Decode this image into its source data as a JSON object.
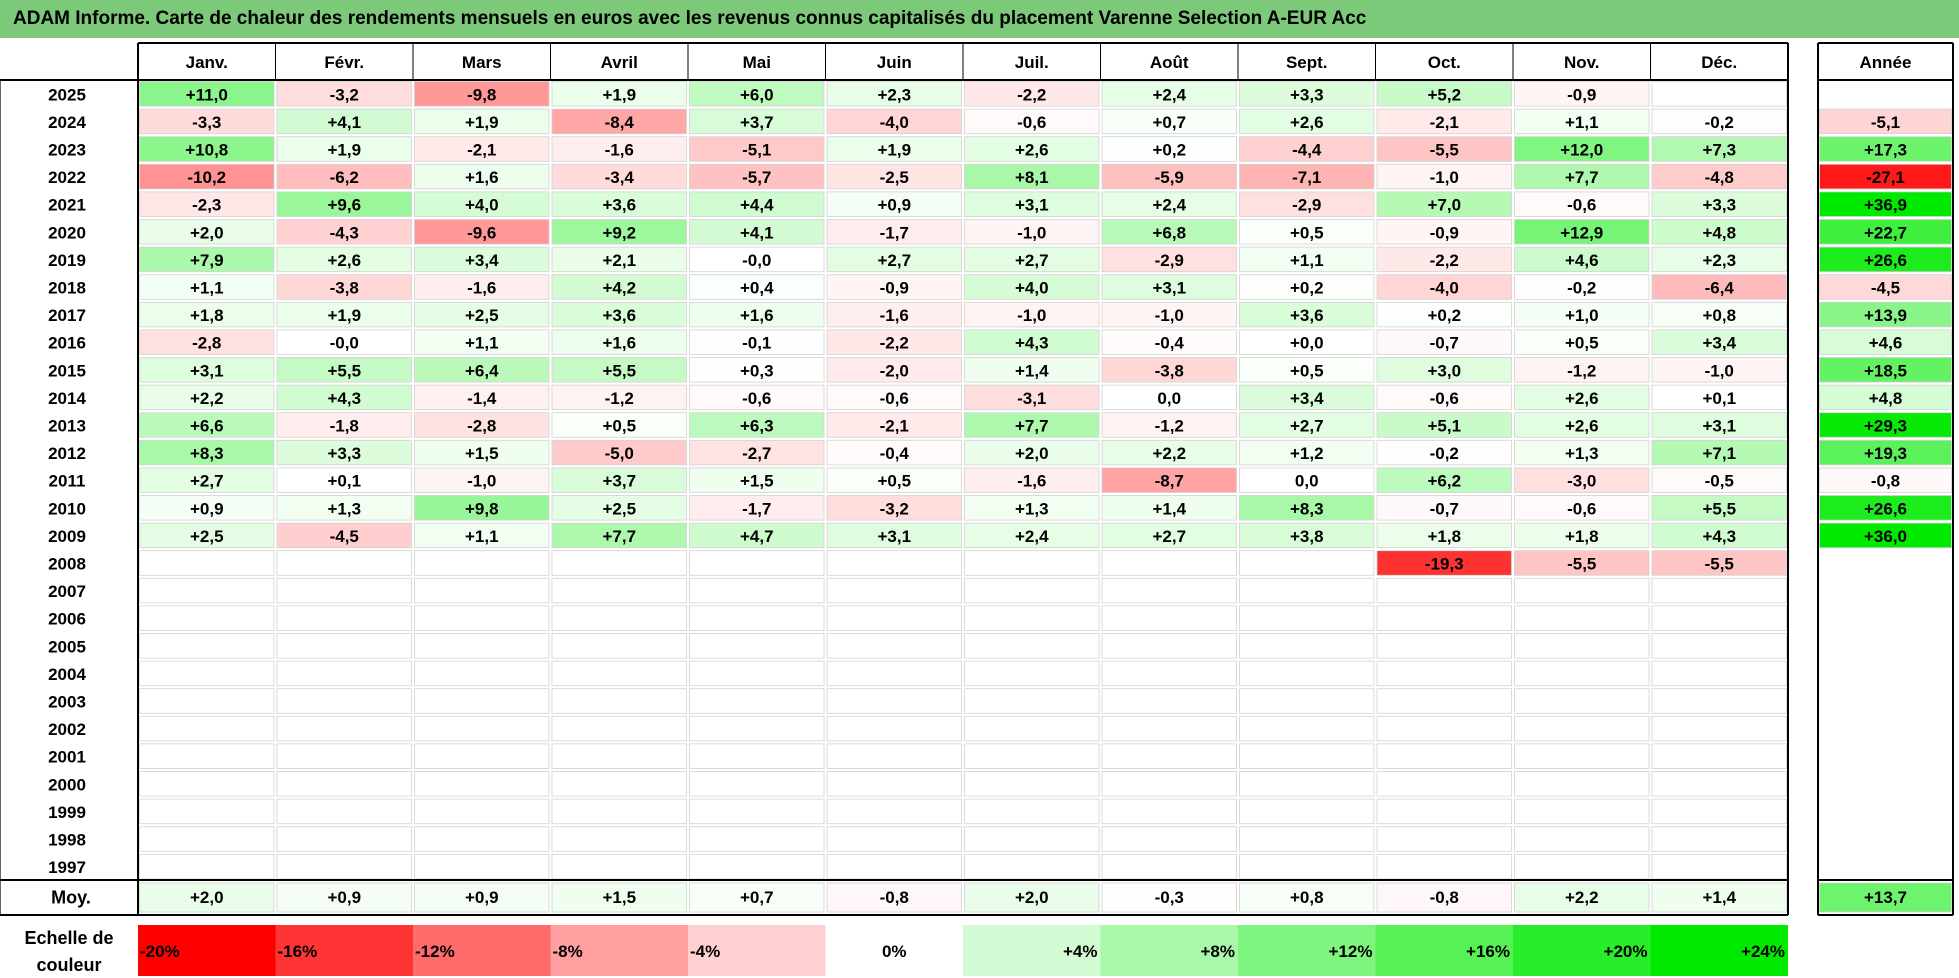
{
  "title": "ADAM Informe. Carte de chaleur des rendements mensuels en euros avec les revenus connus capitalisés du placement Varenne Selection A-EUR Acc",
  "chart_data": {
    "type": "heatmap",
    "months": [
      "Janv.",
      "Févr.",
      "Mars",
      "Avril",
      "Mai",
      "Juin",
      "Juil.",
      "Août",
      "Sept.",
      "Oct.",
      "Nov.",
      "Déc."
    ],
    "year_header": "Année",
    "rows": [
      {
        "year": "2025",
        "values": [
          "+11,0",
          "-3,2",
          "-9,8",
          "+1,9",
          "+6,0",
          "+2,3",
          "-2,2",
          "+2,4",
          "+3,3",
          "+5,2",
          "-0,9",
          ""
        ],
        "annual": ""
      },
      {
        "year": "2024",
        "values": [
          "-3,3",
          "+4,1",
          "+1,9",
          "-8,4",
          "+3,7",
          "-4,0",
          "-0,6",
          "+0,7",
          "+2,6",
          "-2,1",
          "+1,1",
          "-0,2"
        ],
        "annual": "-5,1"
      },
      {
        "year": "2023",
        "values": [
          "+10,8",
          "+1,9",
          "-2,1",
          "-1,6",
          "-5,1",
          "+1,9",
          "+2,6",
          "+0,2",
          "-4,4",
          "-5,5",
          "+12,0",
          "+7,3"
        ],
        "annual": "+17,3"
      },
      {
        "year": "2022",
        "values": [
          "-10,2",
          "-6,2",
          "+1,6",
          "-3,4",
          "-5,7",
          "-2,5",
          "+8,1",
          "-5,9",
          "-7,1",
          "-1,0",
          "+7,7",
          "-4,8"
        ],
        "annual": "-27,1"
      },
      {
        "year": "2021",
        "values": [
          "-2,3",
          "+9,6",
          "+4,0",
          "+3,6",
          "+4,4",
          "+0,9",
          "+3,1",
          "+2,4",
          "-2,9",
          "+7,0",
          "-0,6",
          "+3,3"
        ],
        "annual": "+36,9"
      },
      {
        "year": "2020",
        "values": [
          "+2,0",
          "-4,3",
          "-9,6",
          "+9,2",
          "+4,1",
          "-1,7",
          "-1,0",
          "+6,8",
          "+0,5",
          "-0,9",
          "+12,9",
          "+4,8"
        ],
        "annual": "+22,7"
      },
      {
        "year": "2019",
        "values": [
          "+7,9",
          "+2,6",
          "+3,4",
          "+2,1",
          "-0,0",
          "+2,7",
          "+2,7",
          "-2,9",
          "+1,1",
          "-2,2",
          "+4,6",
          "+2,3"
        ],
        "annual": "+26,6"
      },
      {
        "year": "2018",
        "values": [
          "+1,1",
          "-3,8",
          "-1,6",
          "+4,2",
          "+0,4",
          "-0,9",
          "+4,0",
          "+3,1",
          "+0,2",
          "-4,0",
          "-0,2",
          "-6,4"
        ],
        "annual": "-4,5"
      },
      {
        "year": "2017",
        "values": [
          "+1,8",
          "+1,9",
          "+2,5",
          "+3,6",
          "+1,6",
          "-1,6",
          "-1,0",
          "-1,0",
          "+3,6",
          "+0,2",
          "+1,0",
          "+0,8"
        ],
        "annual": "+13,9"
      },
      {
        "year": "2016",
        "values": [
          "-2,8",
          "-0,0",
          "+1,1",
          "+1,6",
          "-0,1",
          "-2,2",
          "+4,3",
          "-0,4",
          "+0,0",
          "-0,7",
          "+0,5",
          "+3,4"
        ],
        "annual": "+4,6"
      },
      {
        "year": "2015",
        "values": [
          "+3,1",
          "+5,5",
          "+6,4",
          "+5,5",
          "+0,3",
          "-2,0",
          "+1,4",
          "-3,8",
          "+0,5",
          "+3,0",
          "-1,2",
          "-1,0"
        ],
        "annual": "+18,5"
      },
      {
        "year": "2014",
        "values": [
          "+2,2",
          "+4,3",
          "-1,4",
          "-1,2",
          "-0,6",
          "-0,6",
          "-3,1",
          "0,0",
          "+3,4",
          "-0,6",
          "+2,6",
          "+0,1"
        ],
        "annual": "+4,8"
      },
      {
        "year": "2013",
        "values": [
          "+6,6",
          "-1,8",
          "-2,8",
          "+0,5",
          "+6,3",
          "-2,1",
          "+7,7",
          "-1,2",
          "+2,7",
          "+5,1",
          "+2,6",
          "+3,1"
        ],
        "annual": "+29,3"
      },
      {
        "year": "2012",
        "values": [
          "+8,3",
          "+3,3",
          "+1,5",
          "-5,0",
          "-2,7",
          "-0,4",
          "+2,0",
          "+2,2",
          "+1,2",
          "-0,2",
          "+1,3",
          "+7,1"
        ],
        "annual": "+19,3"
      },
      {
        "year": "2011",
        "values": [
          "+2,7",
          "+0,1",
          "-1,0",
          "+3,7",
          "+1,5",
          "+0,5",
          "-1,6",
          "-8,7",
          "0,0",
          "+6,2",
          "-3,0",
          "-0,5"
        ],
        "annual": "-0,8"
      },
      {
        "year": "2010",
        "values": [
          "+0,9",
          "+1,3",
          "+9,8",
          "+2,5",
          "-1,7",
          "-3,2",
          "+1,3",
          "+1,4",
          "+8,3",
          "-0,7",
          "-0,6",
          "+5,5"
        ],
        "annual": "+26,6"
      },
      {
        "year": "2009",
        "values": [
          "+2,5",
          "-4,5",
          "+1,1",
          "+7,7",
          "+4,7",
          "+3,1",
          "+2,4",
          "+2,7",
          "+3,8",
          "+1,8",
          "+1,8",
          "+4,3"
        ],
        "annual": "+36,0"
      },
      {
        "year": "2008",
        "values": [
          "",
          "",
          "",
          "",
          "",
          "",
          "",
          "",
          "",
          "-19,3",
          "-5,5",
          "-5,5"
        ],
        "annual": ""
      },
      {
        "year": "2007",
        "values": [
          "",
          "",
          "",
          "",
          "",
          "",
          "",
          "",
          "",
          "",
          "",
          ""
        ],
        "annual": ""
      },
      {
        "year": "2006",
        "values": [
          "",
          "",
          "",
          "",
          "",
          "",
          "",
          "",
          "",
          "",
          "",
          ""
        ],
        "annual": ""
      },
      {
        "year": "2005",
        "values": [
          "",
          "",
          "",
          "",
          "",
          "",
          "",
          "",
          "",
          "",
          "",
          ""
        ],
        "annual": ""
      },
      {
        "year": "2004",
        "values": [
          "",
          "",
          "",
          "",
          "",
          "",
          "",
          "",
          "",
          "",
          "",
          ""
        ],
        "annual": ""
      },
      {
        "year": "2003",
        "values": [
          "",
          "",
          "",
          "",
          "",
          "",
          "",
          "",
          "",
          "",
          "",
          ""
        ],
        "annual": ""
      },
      {
        "year": "2002",
        "values": [
          "",
          "",
          "",
          "",
          "",
          "",
          "",
          "",
          "",
          "",
          "",
          ""
        ],
        "annual": ""
      },
      {
        "year": "2001",
        "values": [
          "",
          "",
          "",
          "",
          "",
          "",
          "",
          "",
          "",
          "",
          "",
          ""
        ],
        "annual": ""
      },
      {
        "year": "2000",
        "values": [
          "",
          "",
          "",
          "",
          "",
          "",
          "",
          "",
          "",
          "",
          "",
          ""
        ],
        "annual": ""
      },
      {
        "year": "1999",
        "values": [
          "",
          "",
          "",
          "",
          "",
          "",
          "",
          "",
          "",
          "",
          "",
          ""
        ],
        "annual": ""
      },
      {
        "year": "1998",
        "values": [
          "",
          "",
          "",
          "",
          "",
          "",
          "",
          "",
          "",
          "",
          "",
          ""
        ],
        "annual": ""
      },
      {
        "year": "1997",
        "values": [
          "",
          "",
          "",
          "",
          "",
          "",
          "",
          "",
          "",
          "",
          "",
          ""
        ],
        "annual": ""
      }
    ],
    "average": {
      "label": "Moy.",
      "values": [
        "+2,0",
        "+0,9",
        "+0,9",
        "+1,5",
        "+0,7",
        "-0,8",
        "+2,0",
        "-0,3",
        "+0,8",
        "-0,8",
        "+2,2",
        "+1,4"
      ],
      "annual": "+13,7"
    },
    "scale": {
      "label_line1": "Echelle de",
      "label_line2": "couleur",
      "steps": [
        {
          "label": "-20%",
          "color": "#ff0000"
        },
        {
          "label": "-16%",
          "color": "#ff3535"
        },
        {
          "label": "-12%",
          "color": "#ff6a6a"
        },
        {
          "label": "-8%",
          "color": "#ff9f9f"
        },
        {
          "label": "-4%",
          "color": "#ffd0d0"
        },
        {
          "label": "0%",
          "color": "#ffffff"
        },
        {
          "label": "+4%",
          "color": "#d3fbd3"
        },
        {
          "label": "+8%",
          "color": "#a9f8a9"
        },
        {
          "label": "+12%",
          "color": "#7ff47f"
        },
        {
          "label": "+16%",
          "color": "#55f155"
        },
        {
          "label": "+20%",
          "color": "#2aed2a"
        },
        {
          "label": "+24%",
          "color": "#00ea00"
        }
      ]
    },
    "colors": {
      "negative_max": "#ff0000",
      "neutral": "#ffffff",
      "positive_max": "#00ea00"
    }
  }
}
